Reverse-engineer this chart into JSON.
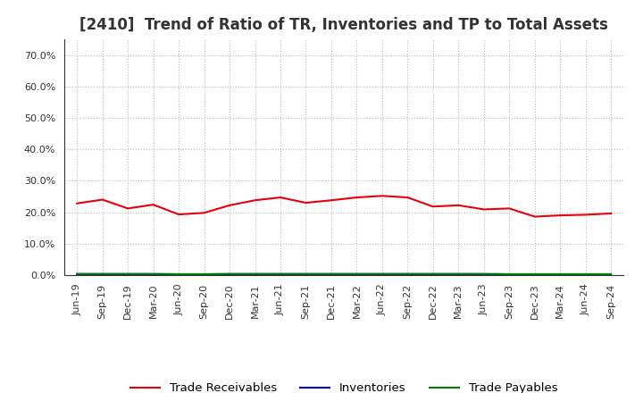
{
  "title": "[2410]  Trend of Ratio of TR, Inventories and TP to Total Assets",
  "x_labels": [
    "Jun-19",
    "Sep-19",
    "Dec-19",
    "Mar-20",
    "Jun-20",
    "Sep-20",
    "Dec-20",
    "Mar-21",
    "Jun-21",
    "Sep-21",
    "Dec-21",
    "Mar-22",
    "Jun-22",
    "Sep-22",
    "Dec-22",
    "Mar-23",
    "Jun-23",
    "Sep-23",
    "Dec-23",
    "Mar-24",
    "Jun-24",
    "Sep-24"
  ],
  "trade_receivables": [
    0.228,
    0.24,
    0.212,
    0.224,
    0.193,
    0.198,
    0.222,
    0.238,
    0.247,
    0.23,
    0.238,
    0.247,
    0.252,
    0.247,
    0.218,
    0.222,
    0.209,
    0.212,
    0.186,
    0.19,
    0.192,
    0.196
  ],
  "inventories": [
    0.001,
    0.001,
    0.001,
    0.001,
    0.001,
    0.001,
    0.001,
    0.001,
    0.001,
    0.001,
    0.001,
    0.001,
    0.001,
    0.001,
    0.001,
    0.001,
    0.001,
    0.001,
    0.001,
    0.001,
    0.001,
    0.001
  ],
  "trade_payables": [
    0.004,
    0.004,
    0.004,
    0.004,
    0.003,
    0.003,
    0.004,
    0.004,
    0.004,
    0.004,
    0.004,
    0.004,
    0.004,
    0.004,
    0.004,
    0.004,
    0.004,
    0.003,
    0.003,
    0.003,
    0.003,
    0.003
  ],
  "tr_color": "#e8000b",
  "inv_color": "#0000cd",
  "tp_color": "#008000",
  "background_color": "#ffffff",
  "plot_bg_color": "#ffffff",
  "grid_color": "#bbbbbb",
  "ylim": [
    0.0,
    0.75
  ],
  "yticks": [
    0.0,
    0.1,
    0.2,
    0.3,
    0.4,
    0.5,
    0.6,
    0.7
  ],
  "legend_labels": [
    "Trade Receivables",
    "Inventories",
    "Trade Payables"
  ],
  "title_fontsize": 12,
  "tick_fontsize": 8,
  "legend_fontsize": 9.5
}
